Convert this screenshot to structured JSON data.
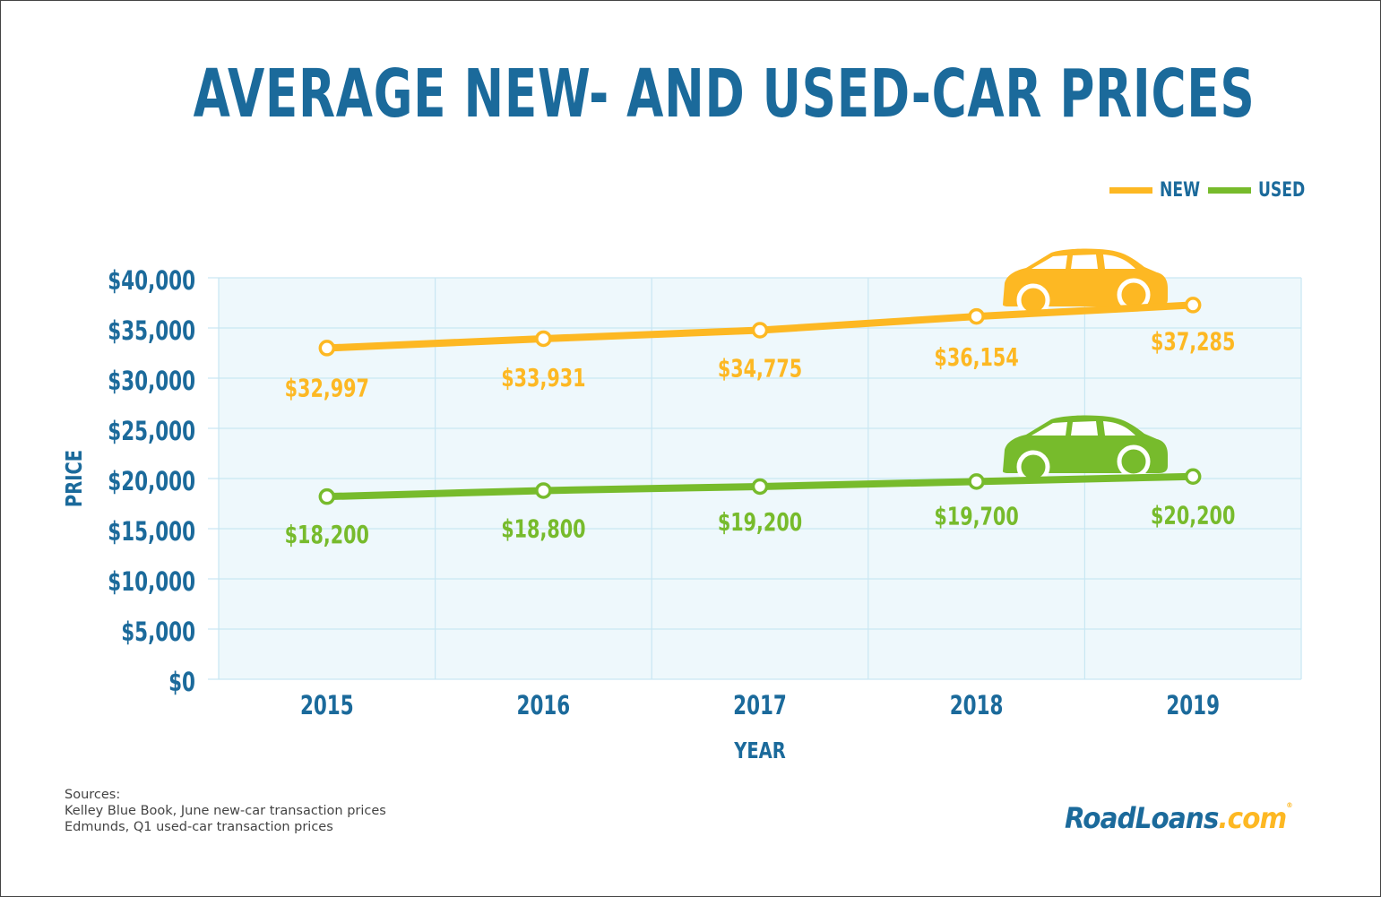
{
  "header": {
    "title": "AVERAGE NEW- AND USED-CAR PRICES"
  },
  "colors": {
    "title": "#1b6a9b",
    "new": "#fdb823",
    "used": "#77bb2c",
    "axis_text": "#1b6a9b",
    "plot_bg": "#eef8fc",
    "grid": "#c9e7f3"
  },
  "icons": {
    "new_series": "car-icon",
    "used_series": "car-icon"
  },
  "chart_data": {
    "type": "line",
    "title": "AVERAGE NEW- AND USED-CAR PRICES",
    "xlabel": "YEAR",
    "ylabel": "PRICE",
    "categories": [
      "2015",
      "2016",
      "2017",
      "2018",
      "2019"
    ],
    "y_ticks": [
      "$0",
      "$5,000",
      "$10,000",
      "$15,000",
      "$20,000",
      "$25,000",
      "$30,000",
      "$35,000",
      "$40,000"
    ],
    "ylim": [
      0,
      40000
    ],
    "grid": true,
    "legend_position": "top-right",
    "series": [
      {
        "name": "NEW",
        "values": [
          32997,
          33931,
          34775,
          36154,
          37285
        ],
        "labels": [
          "$32,997",
          "$33,931",
          "$34,775",
          "$36,154",
          "$37,285"
        ]
      },
      {
        "name": "USED",
        "values": [
          18200,
          18800,
          19200,
          19700,
          20200
        ],
        "labels": [
          "$18,200",
          "$18,800",
          "$19,200",
          "$19,700",
          "$20,200"
        ]
      }
    ]
  },
  "footer": {
    "sources_heading": "Sources:",
    "sources": [
      "Kelley Blue Book, June new-car transaction prices",
      "Edmunds, Q1 used-car transaction prices"
    ],
    "logo_road": "RoadLoans",
    "logo_com": ".com",
    "logo_mark": "®"
  }
}
